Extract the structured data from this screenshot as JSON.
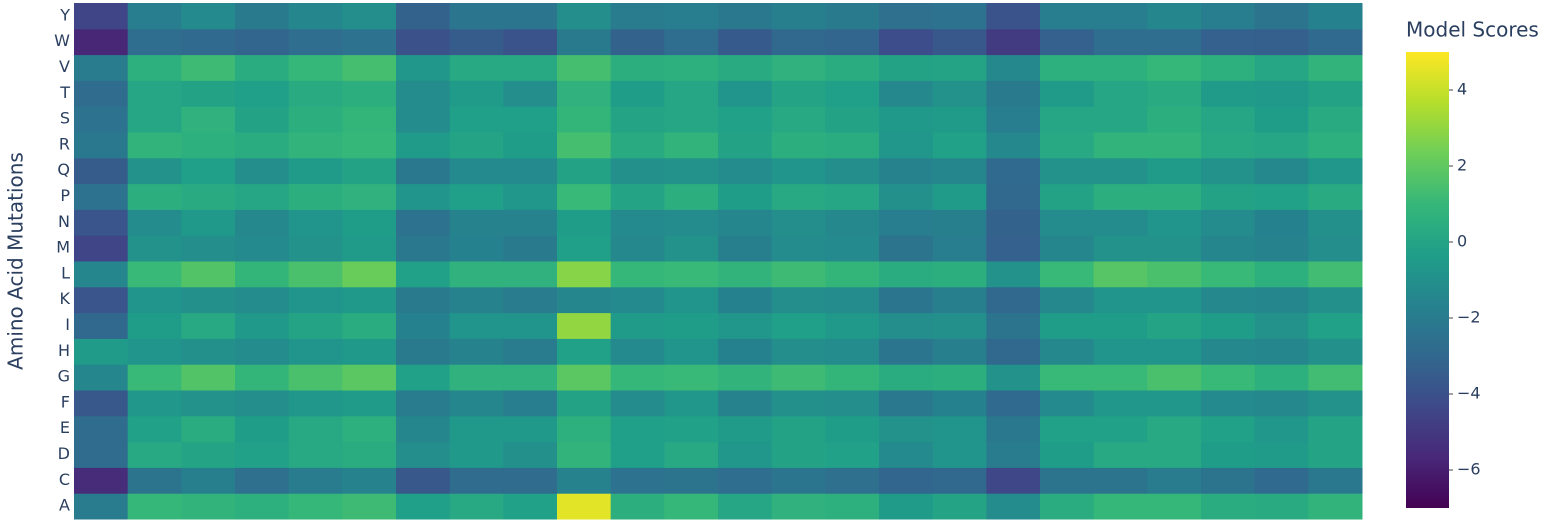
{
  "chart_data": {
    "type": "heatmap",
    "y_title": "Amino Acid Mutations",
    "colorbar_title": "Model Scores",
    "categories": [
      null,
      null,
      null,
      null,
      null,
      null,
      null,
      null,
      null,
      null,
      null,
      null,
      null,
      null,
      null,
      null,
      null,
      null,
      null,
      null,
      null,
      null,
      null,
      null
    ],
    "rows": [
      "A",
      "C",
      "D",
      "E",
      "F",
      "G",
      "H",
      "I",
      "K",
      "L",
      "M",
      "N",
      "P",
      "Q",
      "R",
      "S",
      "T",
      "V",
      "W",
      "Y"
    ],
    "z": [
      [
        -2,
        1,
        0.8,
        0.6,
        1,
        1.2,
        -0.3,
        0.2,
        -0.2,
        4.5,
        0.5,
        1,
        0.1,
        0.7,
        0.6,
        -0.5,
        0,
        -1.2,
        0.4,
        1,
        1,
        0.4,
        0.3,
        0.8
      ],
      [
        -5.5,
        -2.4,
        -1.8,
        -2.6,
        -2,
        -1.6,
        -3.7,
        -2.8,
        -2.8,
        -1.6,
        -2.5,
        -2.4,
        -2.7,
        -2.3,
        -2.6,
        -3.1,
        -3,
        -4.4,
        -2.4,
        -2.4,
        -2,
        -2.4,
        -2.9,
        -2.2
      ],
      [
        -2.8,
        0.2,
        0,
        -0.2,
        0.2,
        0.4,
        -1.1,
        -0.6,
        -1,
        0.8,
        -0.3,
        0.2,
        -0.7,
        -0.1,
        -0.2,
        -1.3,
        -0.8,
        -2,
        -0.4,
        0.2,
        0.2,
        -0.4,
        -0.5,
        0
      ],
      [
        -2.8,
        -0.2,
        0.4,
        -0.4,
        0.2,
        0.6,
        -1.5,
        -0.6,
        -0.6,
        0.6,
        -0.3,
        -0.2,
        -0.5,
        -0.1,
        -0.4,
        -0.9,
        -0.8,
        -2.2,
        -0.2,
        -0.2,
        0.2,
        -0.2,
        -0.7,
        0
      ],
      [
        -3.7,
        -0.7,
        -0.9,
        -1.1,
        -0.7,
        -0.5,
        -2,
        -1.5,
        -1.9,
        -0.1,
        -1.2,
        -0.7,
        -1.6,
        -1,
        -1.1,
        -2.2,
        -1.7,
        -2.9,
        -1.3,
        -0.7,
        -0.7,
        -1.3,
        -1.4,
        -0.9
      ],
      [
        -1.5,
        1.1,
        1.7,
        0.9,
        1.5,
        1.9,
        -0.2,
        0.7,
        0.7,
        1.9,
        1,
        1.1,
        0.8,
        1.2,
        0.9,
        0.4,
        0.5,
        -0.9,
        1.1,
        1.1,
        1.5,
        1.1,
        0.6,
        1.3
      ],
      [
        -0.5,
        -0.8,
        -1,
        -1.2,
        -0.8,
        -0.6,
        -2.1,
        -1.6,
        -2,
        -0.2,
        -1.3,
        -0.8,
        -1.7,
        -1.1,
        -1.2,
        -2.3,
        -1.8,
        -3,
        -1.4,
        -0.8,
        -0.8,
        -1.4,
        -1.5,
        -1
      ],
      [
        -3,
        -0.4,
        0.2,
        -0.6,
        0,
        0.4,
        -1.7,
        -0.8,
        -0.8,
        3,
        -0.5,
        -0.4,
        -0.7,
        -0.3,
        -0.6,
        -1.1,
        -1,
        -2.4,
        -0.4,
        -0.4,
        0,
        -0.4,
        -0.9,
        -0.2
      ],
      [
        -3.8,
        -0.8,
        -1,
        -1.2,
        -0.8,
        -0.6,
        -2.1,
        -1.6,
        -2,
        -1.5,
        -1.3,
        -0.8,
        -1.7,
        -1.1,
        -1.2,
        -2.3,
        -1.8,
        -3,
        -1.4,
        -0.8,
        -0.8,
        -1.4,
        -1.5,
        -1
      ],
      [
        -1.5,
        1.1,
        1.7,
        0.9,
        1.5,
        2.2,
        -0.2,
        0.7,
        0.7,
        2.8,
        1,
        1.1,
        0.8,
        1.2,
        0.9,
        0.4,
        0.5,
        -0.9,
        1.1,
        1.8,
        1.5,
        1.1,
        0.6,
        1.3
      ],
      [
        -4.5,
        -0.9,
        -1.1,
        -1.3,
        -0.9,
        -0.5,
        -2.2,
        -1.7,
        -2.1,
        -0.3,
        -1.4,
        -0.9,
        -1.8,
        -1.2,
        -1.3,
        -2.4,
        -1.9,
        -3.3,
        -1.5,
        -0.9,
        -0.9,
        -1.5,
        -1.6,
        -1.1
      ],
      [
        -3.8,
        -1.2,
        -0.6,
        -1.4,
        -0.8,
        -0.4,
        -2.5,
        -1.6,
        -1.6,
        -0.4,
        -1.3,
        -1.2,
        -1.5,
        -1.1,
        -1.4,
        -1.9,
        -1.8,
        -3.2,
        -1.2,
        -1.2,
        -0.8,
        -1.2,
        -1.7,
        -1
      ],
      [
        -2.5,
        0.5,
        0.3,
        0.1,
        0.5,
        0.7,
        -0.8,
        -0.3,
        -0.7,
        1.1,
        0,
        0.5,
        -0.4,
        0.2,
        0.1,
        -1,
        -0.5,
        -3,
        -0.1,
        0.5,
        0.5,
        -0.1,
        -0.2,
        0.3
      ],
      [
        -3.5,
        -0.9,
        -0.3,
        -1.1,
        -0.5,
        -0.1,
        -2.2,
        -1.3,
        -1.3,
        -0.1,
        -1,
        -0.9,
        -1.2,
        -0.8,
        -1.1,
        -1.6,
        -1.5,
        -2.9,
        -0.9,
        -0.9,
        -0.5,
        -0.9,
        -1.4,
        -0.7
      ],
      [
        -2.2,
        0.8,
        0.6,
        0.4,
        0.8,
        1,
        -0.5,
        0,
        -0.4,
        1.4,
        0.3,
        0.8,
        -0.1,
        0.5,
        0.4,
        -0.7,
        -0.2,
        -1.4,
        0.2,
        0.8,
        0.8,
        0.2,
        0.1,
        0.6
      ],
      [
        -2.5,
        0.1,
        0.7,
        -0.1,
        0.5,
        0.9,
        -1.2,
        -0.3,
        -0.3,
        0.9,
        0,
        0.1,
        -0.2,
        0.2,
        -0.1,
        -0.6,
        -0.5,
        -1.9,
        0.1,
        0.1,
        0.5,
        0.1,
        -0.4,
        0.3
      ],
      [
        -2.8,
        0.1,
        -0.1,
        -0.3,
        0.3,
        0.5,
        -1.2,
        -0.5,
        -1.1,
        0.7,
        -0.4,
        0.1,
        -0.8,
        0,
        -0.3,
        -1.4,
        -0.9,
        -2.1,
        -0.5,
        0.1,
        0.3,
        -0.5,
        -0.6,
        -0.1
      ],
      [
        -2,
        0.6,
        1.2,
        0.4,
        1,
        1.4,
        -0.7,
        0.2,
        0.2,
        1.4,
        0.5,
        0.6,
        0.3,
        0.7,
        0.4,
        -0.1,
        0,
        -1.4,
        0.6,
        0.6,
        1,
        0.6,
        0.1,
        0.8
      ],
      [
        -5.7,
        -2.7,
        -2.9,
        -3.1,
        -2.7,
        -2.5,
        -4,
        -3.5,
        -3.9,
        -2.1,
        -3.2,
        -2.7,
        -3.6,
        -3,
        -3.1,
        -4.2,
        -3.7,
        -4.9,
        -3.3,
        -2.7,
        -2.7,
        -3.3,
        -3.4,
        -2.9
      ],
      [
        -4.5,
        -1.9,
        -1.3,
        -2.1,
        -1.5,
        -1.1,
        -3.2,
        -2.3,
        -2.3,
        -1.1,
        -2,
        -1.9,
        -2.2,
        -1.8,
        -2.1,
        -2.6,
        -2.5,
        -3.9,
        -1.9,
        -1.9,
        -1.5,
        -1.9,
        -2.4,
        -1.7
      ]
    ],
    "zlim": [
      -7,
      5
    ],
    "zticks": [
      {
        "value": -6,
        "label": "−6"
      },
      {
        "value": -4,
        "label": "−4"
      },
      {
        "value": -2,
        "label": "−2"
      },
      0,
      2,
      4
    ],
    "colorscale": [
      "#440154",
      "#482878",
      "#3e4989",
      "#31688e",
      "#26828e",
      "#1f9e89",
      "#35b779",
      "#6ece58",
      "#b5de2b",
      "#fde725"
    ]
  }
}
